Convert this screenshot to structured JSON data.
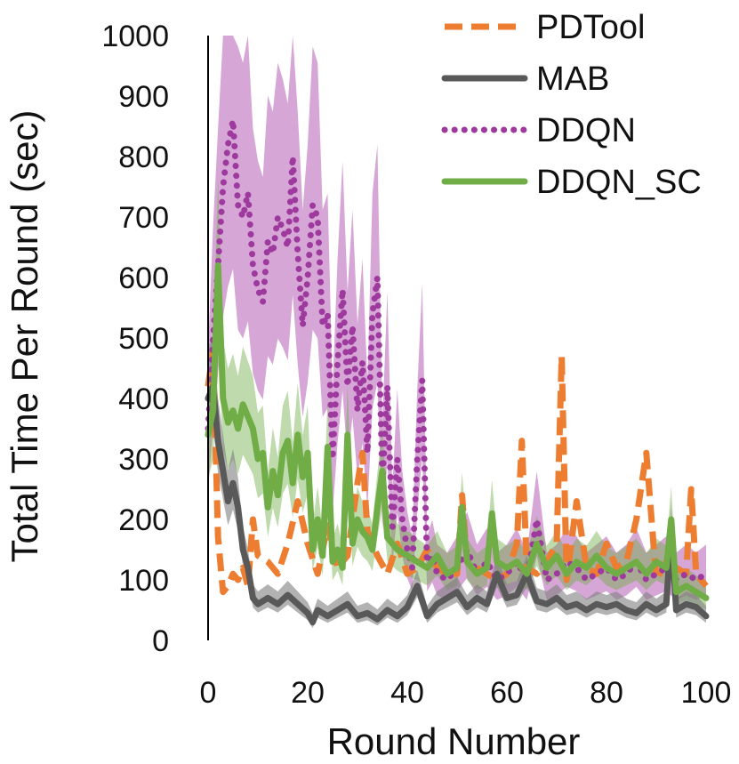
{
  "chart_data": {
    "type": "line",
    "title": "",
    "xlabel": "Round Number",
    "ylabel": "Total Time Per Round (sec)",
    "xlim": [
      0,
      100
    ],
    "ylim": [
      0,
      1000
    ],
    "xticks": [
      "0",
      "20",
      "40",
      "60",
      "80",
      "100"
    ],
    "yticks": [
      "0",
      "100",
      "200",
      "300",
      "400",
      "500",
      "600",
      "700",
      "800",
      "900",
      "1000"
    ],
    "grid": false,
    "legend_position": "top-right",
    "series": [
      {
        "name": "PDTool",
        "color": "#ED7D31",
        "style": "dashed",
        "x": [
          0,
          1,
          2,
          3,
          4,
          5,
          6,
          7,
          8,
          9,
          10,
          12,
          14,
          16,
          18,
          20,
          22,
          24,
          26,
          28,
          30,
          31,
          32,
          34,
          36,
          38,
          40,
          42,
          44,
          46,
          48,
          50,
          51,
          52,
          54,
          56,
          58,
          60,
          62,
          63,
          64,
          66,
          68,
          70,
          71,
          72,
          74,
          76,
          78,
          80,
          82,
          84,
          86,
          88,
          90,
          92,
          94,
          96,
          97,
          98,
          100
        ],
        "values": [
          420,
          480,
          170,
          80,
          90,
          110,
          100,
          120,
          90,
          200,
          140,
          130,
          110,
          160,
          230,
          160,
          110,
          190,
          120,
          140,
          260,
          310,
          180,
          140,
          110,
          160,
          110,
          120,
          150,
          120,
          110,
          110,
          240,
          130,
          120,
          110,
          100,
          110,
          160,
          330,
          120,
          110,
          130,
          160,
          470,
          100,
          230,
          120,
          110,
          160,
          120,
          130,
          200,
          310,
          100,
          130,
          120,
          110,
          250,
          110,
          90
        ]
      },
      {
        "name": "MAB",
        "color": "#595959",
        "style": "solid",
        "x": [
          0,
          1,
          2,
          3,
          4,
          5,
          6,
          7,
          8,
          9,
          10,
          12,
          14,
          16,
          18,
          20,
          21,
          22,
          24,
          26,
          28,
          30,
          32,
          34,
          36,
          38,
          40,
          42,
          44,
          46,
          48,
          50,
          52,
          54,
          56,
          58,
          60,
          62,
          64,
          66,
          68,
          70,
          72,
          74,
          76,
          78,
          80,
          82,
          84,
          86,
          88,
          90,
          92,
          93,
          94,
          96,
          98,
          100
        ],
        "values": [
          400,
          420,
          330,
          280,
          230,
          260,
          220,
          150,
          120,
          70,
          60,
          70,
          60,
          75,
          60,
          45,
          30,
          50,
          40,
          50,
          60,
          40,
          45,
          35,
          50,
          40,
          55,
          90,
          40,
          60,
          70,
          80,
          55,
          70,
          60,
          110,
          70,
          75,
          110,
          65,
          60,
          70,
          55,
          60,
          50,
          60,
          55,
          60,
          50,
          45,
          60,
          50,
          60,
          180,
          50,
          60,
          55,
          40
        ]
      },
      {
        "name": "DDQN",
        "color": "#9E3A9E",
        "style": "dotted",
        "x": [
          0,
          1,
          2,
          3,
          4,
          5,
          6,
          7,
          8,
          9,
          10,
          11,
          12,
          13,
          14,
          15,
          16,
          17,
          18,
          19,
          20,
          21,
          22,
          23,
          24,
          25,
          26,
          27,
          28,
          29,
          30,
          31,
          32,
          33,
          34,
          35,
          36,
          37,
          38,
          39,
          40,
          41,
          42,
          43,
          44,
          45,
          46,
          48,
          50,
          52,
          54,
          56,
          58,
          60,
          62,
          64,
          66,
          68,
          70,
          72,
          74,
          76,
          78,
          80,
          82,
          84,
          86,
          88,
          90,
          92,
          94,
          96,
          98,
          100
        ],
        "values": [
          350,
          500,
          620,
          750,
          820,
          860,
          720,
          700,
          740,
          620,
          580,
          560,
          660,
          640,
          700,
          680,
          650,
          800,
          640,
          520,
          600,
          720,
          700,
          520,
          540,
          300,
          460,
          580,
          420,
          520,
          380,
          460,
          310,
          540,
          600,
          260,
          420,
          180,
          300,
          200,
          150,
          120,
          300,
          430,
          120,
          140,
          110,
          100,
          120,
          150,
          110,
          130,
          100,
          110,
          130,
          100,
          200,
          100,
          110,
          130,
          120,
          100,
          110,
          120,
          100,
          110,
          130,
          100,
          110,
          120,
          100,
          110,
          100,
          110
        ]
      },
      {
        "name": "DDQN_SC",
        "color": "#70AD47",
        "style": "solid",
        "x": [
          0,
          1,
          2,
          3,
          4,
          5,
          6,
          7,
          8,
          9,
          10,
          11,
          12,
          13,
          14,
          15,
          16,
          17,
          18,
          19,
          20,
          21,
          22,
          23,
          24,
          25,
          26,
          27,
          28,
          29,
          30,
          31,
          32,
          33,
          34,
          35,
          36,
          38,
          40,
          42,
          44,
          46,
          48,
          50,
          51,
          52,
          54,
          56,
          57,
          58,
          60,
          62,
          64,
          66,
          68,
          70,
          72,
          74,
          76,
          78,
          80,
          82,
          84,
          86,
          88,
          90,
          92,
          93,
          94,
          96,
          98,
          100
        ],
        "values": [
          340,
          380,
          620,
          400,
          360,
          380,
          350,
          390,
          370,
          350,
          300,
          310,
          220,
          280,
          240,
          310,
          330,
          260,
          340,
          270,
          310,
          150,
          200,
          140,
          320,
          130,
          150,
          120,
          340,
          160,
          200,
          180,
          170,
          150,
          220,
          280,
          170,
          150,
          140,
          130,
          120,
          140,
          110,
          120,
          220,
          130,
          110,
          120,
          210,
          130,
          120,
          130,
          110,
          160,
          120,
          140,
          110,
          130,
          120,
          140,
          120,
          110,
          120,
          130,
          110,
          130,
          120,
          200,
          80,
          90,
          80,
          70
        ]
      }
    ]
  }
}
